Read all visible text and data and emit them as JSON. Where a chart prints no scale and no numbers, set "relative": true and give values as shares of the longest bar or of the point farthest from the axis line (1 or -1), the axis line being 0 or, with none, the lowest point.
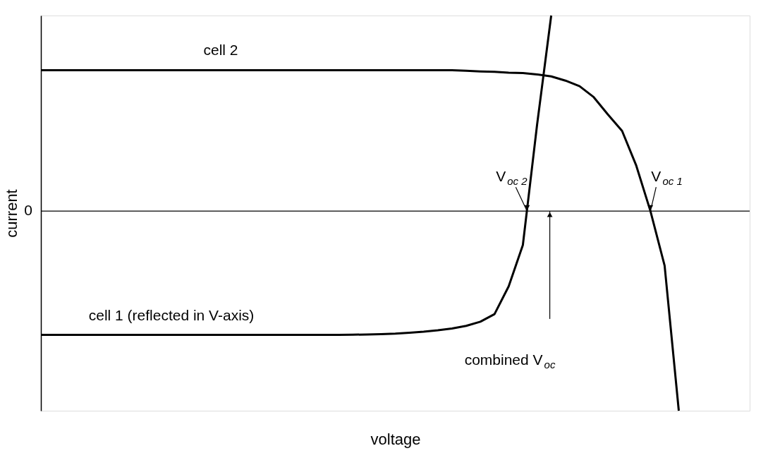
{
  "chart_data": {
    "type": "line",
    "relative": true,
    "xlabel": "voltage",
    "ylabel": "current",
    "categories": [
      null,
      null,
      null,
      null,
      null,
      null,
      null,
      null,
      null,
      null,
      null,
      null,
      null,
      null,
      null,
      null,
      null,
      null,
      null,
      null,
      null,
      null,
      null,
      null,
      null,
      null,
      null,
      null,
      null,
      null,
      null,
      null,
      null,
      null,
      null,
      null,
      null,
      null,
      null,
      null,
      null,
      null,
      null,
      null,
      null,
      null,
      null,
      null,
      null,
      null,
      null
    ],
    "series": [
      {
        "name": "cell 2",
        "color": "#000000",
        "values": [
          0.706,
          0.706,
          0.706,
          0.706,
          0.706,
          0.706,
          0.706,
          0.706,
          0.706,
          0.706,
          0.706,
          0.706,
          0.706,
          0.706,
          0.706,
          0.706,
          0.706,
          0.706,
          0.706,
          0.706,
          0.706,
          0.706,
          0.706,
          0.706,
          0.706,
          0.706,
          0.706,
          0.706,
          0.706,
          0.706,
          0.703,
          0.7,
          0.698,
          0.694,
          0.692,
          0.685,
          0.675,
          0.654,
          0.626,
          0.571,
          0.484,
          0.402,
          0.228,
          0,
          -0.273,
          -1,
          null,
          null,
          null,
          null,
          null
        ]
      },
      {
        "name": "cell 1 (reflected in V-axis)",
        "color": "#000000",
        "values": [
          -0.62,
          -0.62,
          -0.62,
          -0.62,
          -0.62,
          -0.62,
          -0.62,
          -0.62,
          -0.62,
          -0.62,
          -0.62,
          -0.62,
          -0.62,
          -0.62,
          -0.62,
          -0.62,
          -0.62,
          -0.62,
          -0.62,
          -0.62,
          -0.62,
          -0.62,
          -0.619,
          -0.618,
          -0.616,
          -0.614,
          -0.609,
          -0.604,
          -0.597,
          -0.588,
          -0.575,
          -0.554,
          -0.516,
          -0.377,
          -0.17,
          0.431,
          0.98,
          null,
          null,
          null,
          null,
          null,
          null,
          null,
          null,
          null,
          null,
          null,
          null,
          null,
          null
        ]
      }
    ],
    "ref_lines": [
      {
        "axis": "y",
        "value": 0,
        "label": "0",
        "color": "#000000"
      }
    ],
    "annotations": [
      "V$_{oc 2}$",
      "V$_{oc 1}$",
      "combined V$_{oc}$"
    ]
  }
}
